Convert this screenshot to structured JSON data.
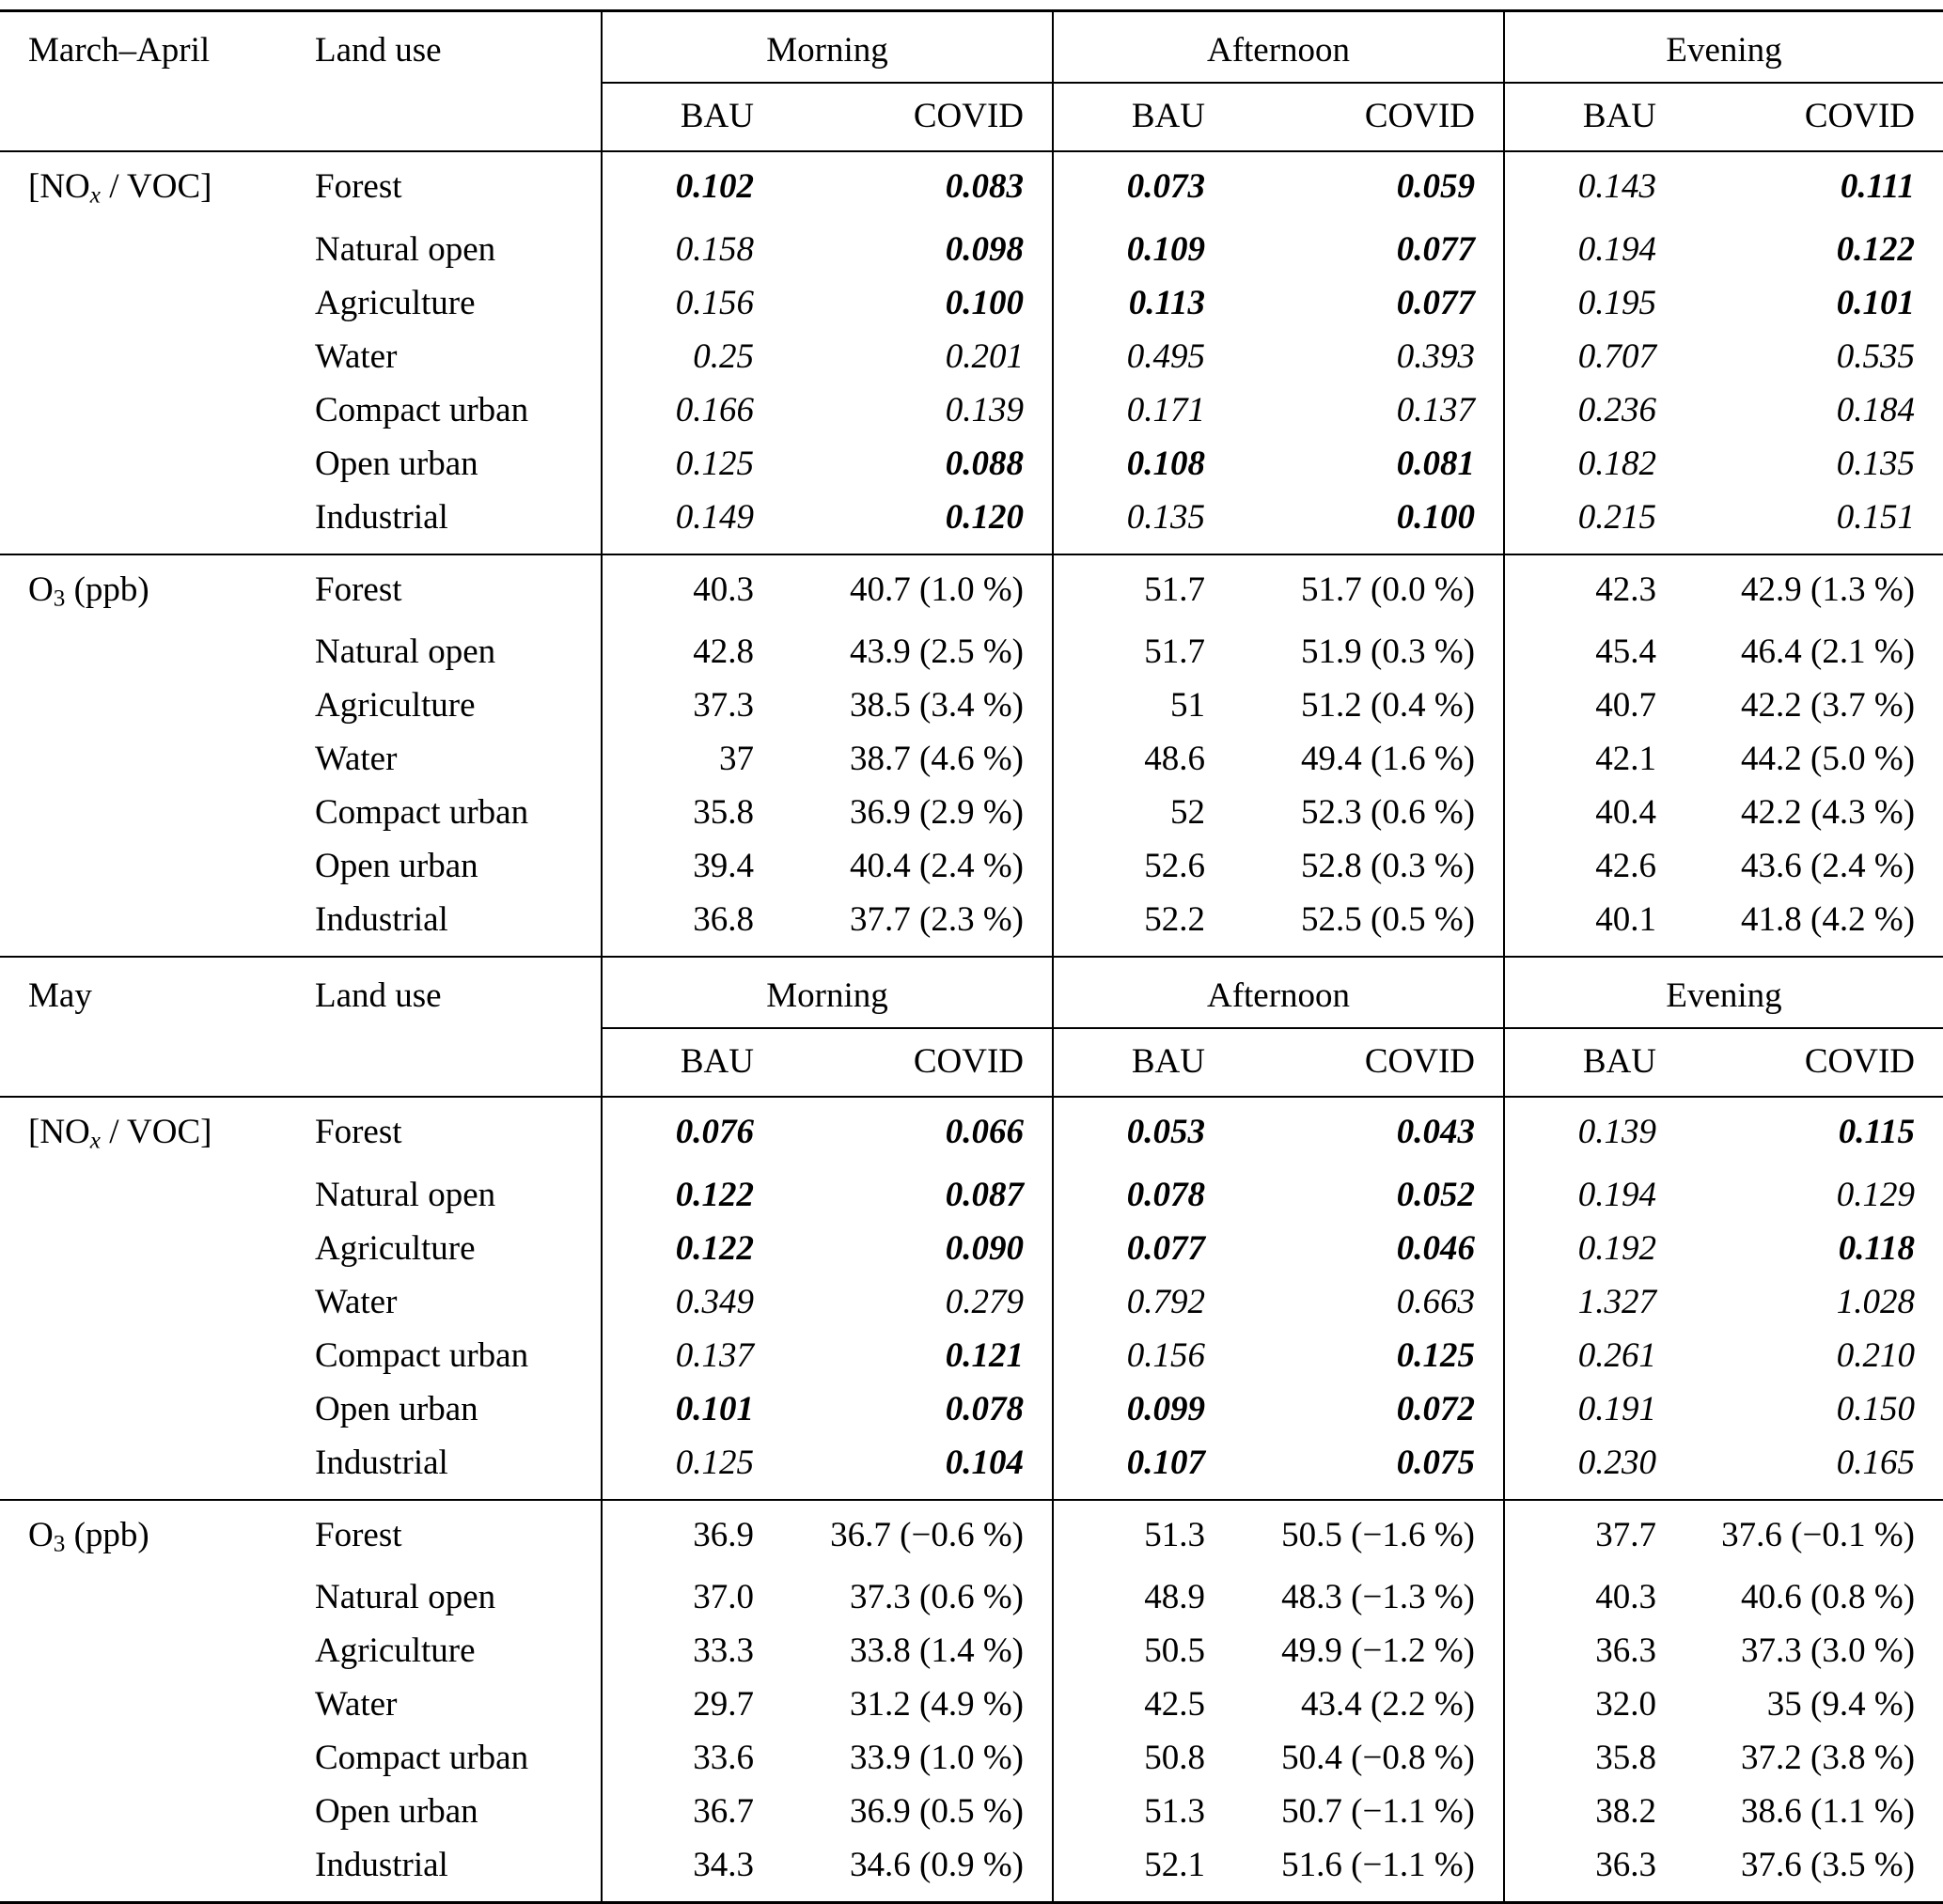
{
  "table": {
    "headers": {
      "land_use": "Land use",
      "time_groups": [
        "Morning",
        "Afternoon",
        "Evening"
      ],
      "scenarios": [
        "BAU",
        "COVID"
      ]
    },
    "blocks": [
      {
        "period": "March–April",
        "sections": [
          {
            "style": "ratio",
            "label_parts": [
              {
                "t": "[NO"
              },
              {
                "t": "x",
                "sub": true,
                "i": true
              },
              {
                "t": " / VOC]"
              }
            ],
            "rows": [
              {
                "land_use": "Forest",
                "cells": [
                  {
                    "v": "0.102",
                    "b": true
                  },
                  {
                    "v": "0.083",
                    "b": true
                  },
                  {
                    "v": "0.073",
                    "b": true
                  },
                  {
                    "v": "0.059",
                    "b": true
                  },
                  {
                    "v": "0.143"
                  },
                  {
                    "v": "0.111",
                    "b": true
                  }
                ]
              },
              {
                "land_use": "Natural open",
                "cells": [
                  {
                    "v": "0.158"
                  },
                  {
                    "v": "0.098",
                    "b": true
                  },
                  {
                    "v": "0.109",
                    "b": true
                  },
                  {
                    "v": "0.077",
                    "b": true
                  },
                  {
                    "v": "0.194"
                  },
                  {
                    "v": "0.122",
                    "b": true
                  }
                ]
              },
              {
                "land_use": "Agriculture",
                "cells": [
                  {
                    "v": "0.156"
                  },
                  {
                    "v": "0.100",
                    "b": true
                  },
                  {
                    "v": "0.113",
                    "b": true
                  },
                  {
                    "v": "0.077",
                    "b": true
                  },
                  {
                    "v": "0.195"
                  },
                  {
                    "v": "0.101",
                    "b": true
                  }
                ]
              },
              {
                "land_use": "Water",
                "cells": [
                  {
                    "v": "0.25"
                  },
                  {
                    "v": "0.201"
                  },
                  {
                    "v": "0.495"
                  },
                  {
                    "v": "0.393"
                  },
                  {
                    "v": "0.707"
                  },
                  {
                    "v": "0.535"
                  }
                ]
              },
              {
                "land_use": "Compact urban",
                "cells": [
                  {
                    "v": "0.166"
                  },
                  {
                    "v": "0.139"
                  },
                  {
                    "v": "0.171"
                  },
                  {
                    "v": "0.137"
                  },
                  {
                    "v": "0.236"
                  },
                  {
                    "v": "0.184"
                  }
                ]
              },
              {
                "land_use": "Open urban",
                "cells": [
                  {
                    "v": "0.125"
                  },
                  {
                    "v": "0.088",
                    "b": true
                  },
                  {
                    "v": "0.108",
                    "b": true
                  },
                  {
                    "v": "0.081",
                    "b": true
                  },
                  {
                    "v": "0.182"
                  },
                  {
                    "v": "0.135"
                  }
                ]
              },
              {
                "land_use": "Industrial",
                "cells": [
                  {
                    "v": "0.149"
                  },
                  {
                    "v": "0.120",
                    "b": true
                  },
                  {
                    "v": "0.135"
                  },
                  {
                    "v": "0.100",
                    "b": true
                  },
                  {
                    "v": "0.215"
                  },
                  {
                    "v": "0.151"
                  }
                ]
              }
            ]
          },
          {
            "style": "o3",
            "label_parts": [
              {
                "t": "O"
              },
              {
                "t": "3",
                "sub": true
              },
              {
                "t": " (ppb)"
              }
            ],
            "rows": [
              {
                "land_use": "Forest",
                "cells": [
                  "40.3",
                  "40.7 (1.0 %)",
                  "51.7",
                  "51.7 (0.0 %)",
                  "42.3",
                  "42.9 (1.3 %)"
                ]
              },
              {
                "land_use": "Natural open",
                "cells": [
                  "42.8",
                  "43.9 (2.5 %)",
                  "51.7",
                  "51.9 (0.3 %)",
                  "45.4",
                  "46.4 (2.1 %)"
                ]
              },
              {
                "land_use": "Agriculture",
                "cells": [
                  "37.3",
                  "38.5 (3.4 %)",
                  "51",
                  "51.2 (0.4 %)",
                  "40.7",
                  "42.2 (3.7 %)"
                ]
              },
              {
                "land_use": "Water",
                "cells": [
                  "37",
                  "38.7 (4.6 %)",
                  "48.6",
                  "49.4 (1.6 %)",
                  "42.1",
                  "44.2 (5.0 %)"
                ]
              },
              {
                "land_use": "Compact urban",
                "cells": [
                  "35.8",
                  "36.9 (2.9 %)",
                  "52",
                  "52.3 (0.6 %)",
                  "40.4",
                  "42.2 (4.3 %)"
                ]
              },
              {
                "land_use": "Open urban",
                "cells": [
                  "39.4",
                  "40.4 (2.4 %)",
                  "52.6",
                  "52.8 (0.3 %)",
                  "42.6",
                  "43.6 (2.4 %)"
                ]
              },
              {
                "land_use": "Industrial",
                "cells": [
                  "36.8",
                  "37.7 (2.3 %)",
                  "52.2",
                  "52.5 (0.5 %)",
                  "40.1",
                  "41.8 (4.2 %)"
                ]
              }
            ]
          }
        ]
      },
      {
        "period": "May",
        "sections": [
          {
            "style": "ratio",
            "label_parts": [
              {
                "t": "[NO"
              },
              {
                "t": "x",
                "sub": true,
                "i": true
              },
              {
                "t": " / VOC]"
              }
            ],
            "rows": [
              {
                "land_use": "Forest",
                "cells": [
                  {
                    "v": "0.076",
                    "b": true
                  },
                  {
                    "v": "0.066",
                    "b": true
                  },
                  {
                    "v": "0.053",
                    "b": true
                  },
                  {
                    "v": "0.043",
                    "b": true
                  },
                  {
                    "v": "0.139"
                  },
                  {
                    "v": "0.115",
                    "b": true
                  }
                ]
              },
              {
                "land_use": "Natural open",
                "cells": [
                  {
                    "v": "0.122",
                    "b": true
                  },
                  {
                    "v": "0.087",
                    "b": true
                  },
                  {
                    "v": "0.078",
                    "b": true
                  },
                  {
                    "v": "0.052",
                    "b": true
                  },
                  {
                    "v": "0.194"
                  },
                  {
                    "v": "0.129"
                  }
                ]
              },
              {
                "land_use": "Agriculture",
                "cells": [
                  {
                    "v": "0.122",
                    "b": true
                  },
                  {
                    "v": "0.090",
                    "b": true
                  },
                  {
                    "v": "0.077",
                    "b": true
                  },
                  {
                    "v": "0.046",
                    "b": true
                  },
                  {
                    "v": "0.192"
                  },
                  {
                    "v": "0.118",
                    "b": true
                  }
                ]
              },
              {
                "land_use": "Water",
                "cells": [
                  {
                    "v": "0.349"
                  },
                  {
                    "v": "0.279"
                  },
                  {
                    "v": "0.792"
                  },
                  {
                    "v": "0.663"
                  },
                  {
                    "v": "1.327"
                  },
                  {
                    "v": "1.028"
                  }
                ]
              },
              {
                "land_use": "Compact urban",
                "cells": [
                  {
                    "v": "0.137"
                  },
                  {
                    "v": "0.121",
                    "b": true
                  },
                  {
                    "v": "0.156"
                  },
                  {
                    "v": "0.125",
                    "b": true
                  },
                  {
                    "v": "0.261"
                  },
                  {
                    "v": "0.210"
                  }
                ]
              },
              {
                "land_use": "Open urban",
                "cells": [
                  {
                    "v": "0.101",
                    "b": true
                  },
                  {
                    "v": "0.078",
                    "b": true
                  },
                  {
                    "v": "0.099",
                    "b": true
                  },
                  {
                    "v": "0.072",
                    "b": true
                  },
                  {
                    "v": "0.191"
                  },
                  {
                    "v": "0.150"
                  }
                ]
              },
              {
                "land_use": "Industrial",
                "cells": [
                  {
                    "v": "0.125"
                  },
                  {
                    "v": "0.104",
                    "b": true
                  },
                  {
                    "v": "0.107",
                    "b": true
                  },
                  {
                    "v": "0.075",
                    "b": true
                  },
                  {
                    "v": "0.230"
                  },
                  {
                    "v": "0.165"
                  }
                ]
              }
            ]
          },
          {
            "style": "o3",
            "label_parts": [
              {
                "t": "O"
              },
              {
                "t": "3",
                "sub": true
              },
              {
                "t": " (ppb)"
              }
            ],
            "rows": [
              {
                "land_use": "Forest",
                "cells": [
                  "36.9",
                  "36.7 (−0.6 %)",
                  "51.3",
                  "50.5 (−1.6 %)",
                  "37.7",
                  "37.6 (−0.1 %)"
                ]
              },
              {
                "land_use": "Natural open",
                "cells": [
                  "37.0",
                  "37.3 (0.6 %)",
                  "48.9",
                  "48.3 (−1.3 %)",
                  "40.3",
                  "40.6 (0.8 %)"
                ]
              },
              {
                "land_use": "Agriculture",
                "cells": [
                  "33.3",
                  "33.8 (1.4 %)",
                  "50.5",
                  "49.9 (−1.2 %)",
                  "36.3",
                  "37.3 (3.0 %)"
                ]
              },
              {
                "land_use": "Water",
                "cells": [
                  "29.7",
                  "31.2 (4.9 %)",
                  "42.5",
                  "43.4 (2.2 %)",
                  "32.0",
                  "35 (9.4 %)"
                ]
              },
              {
                "land_use": "Compact urban",
                "cells": [
                  "33.6",
                  "33.9 (1.0 %)",
                  "50.8",
                  "50.4 (−0.8 %)",
                  "35.8",
                  "37.2 (3.8 %)"
                ]
              },
              {
                "land_use": "Open urban",
                "cells": [
                  "36.7",
                  "36.9 (0.5 %)",
                  "51.3",
                  "50.7 (−1.1 %)",
                  "38.2",
                  "38.6 (1.1 %)"
                ]
              },
              {
                "land_use": "Industrial",
                "cells": [
                  "34.3",
                  "34.6 (0.9 %)",
                  "52.1",
                  "51.6 (−1.1 %)",
                  "36.3",
                  "37.6 (3.5 %)"
                ]
              }
            ]
          }
        ]
      }
    ]
  }
}
